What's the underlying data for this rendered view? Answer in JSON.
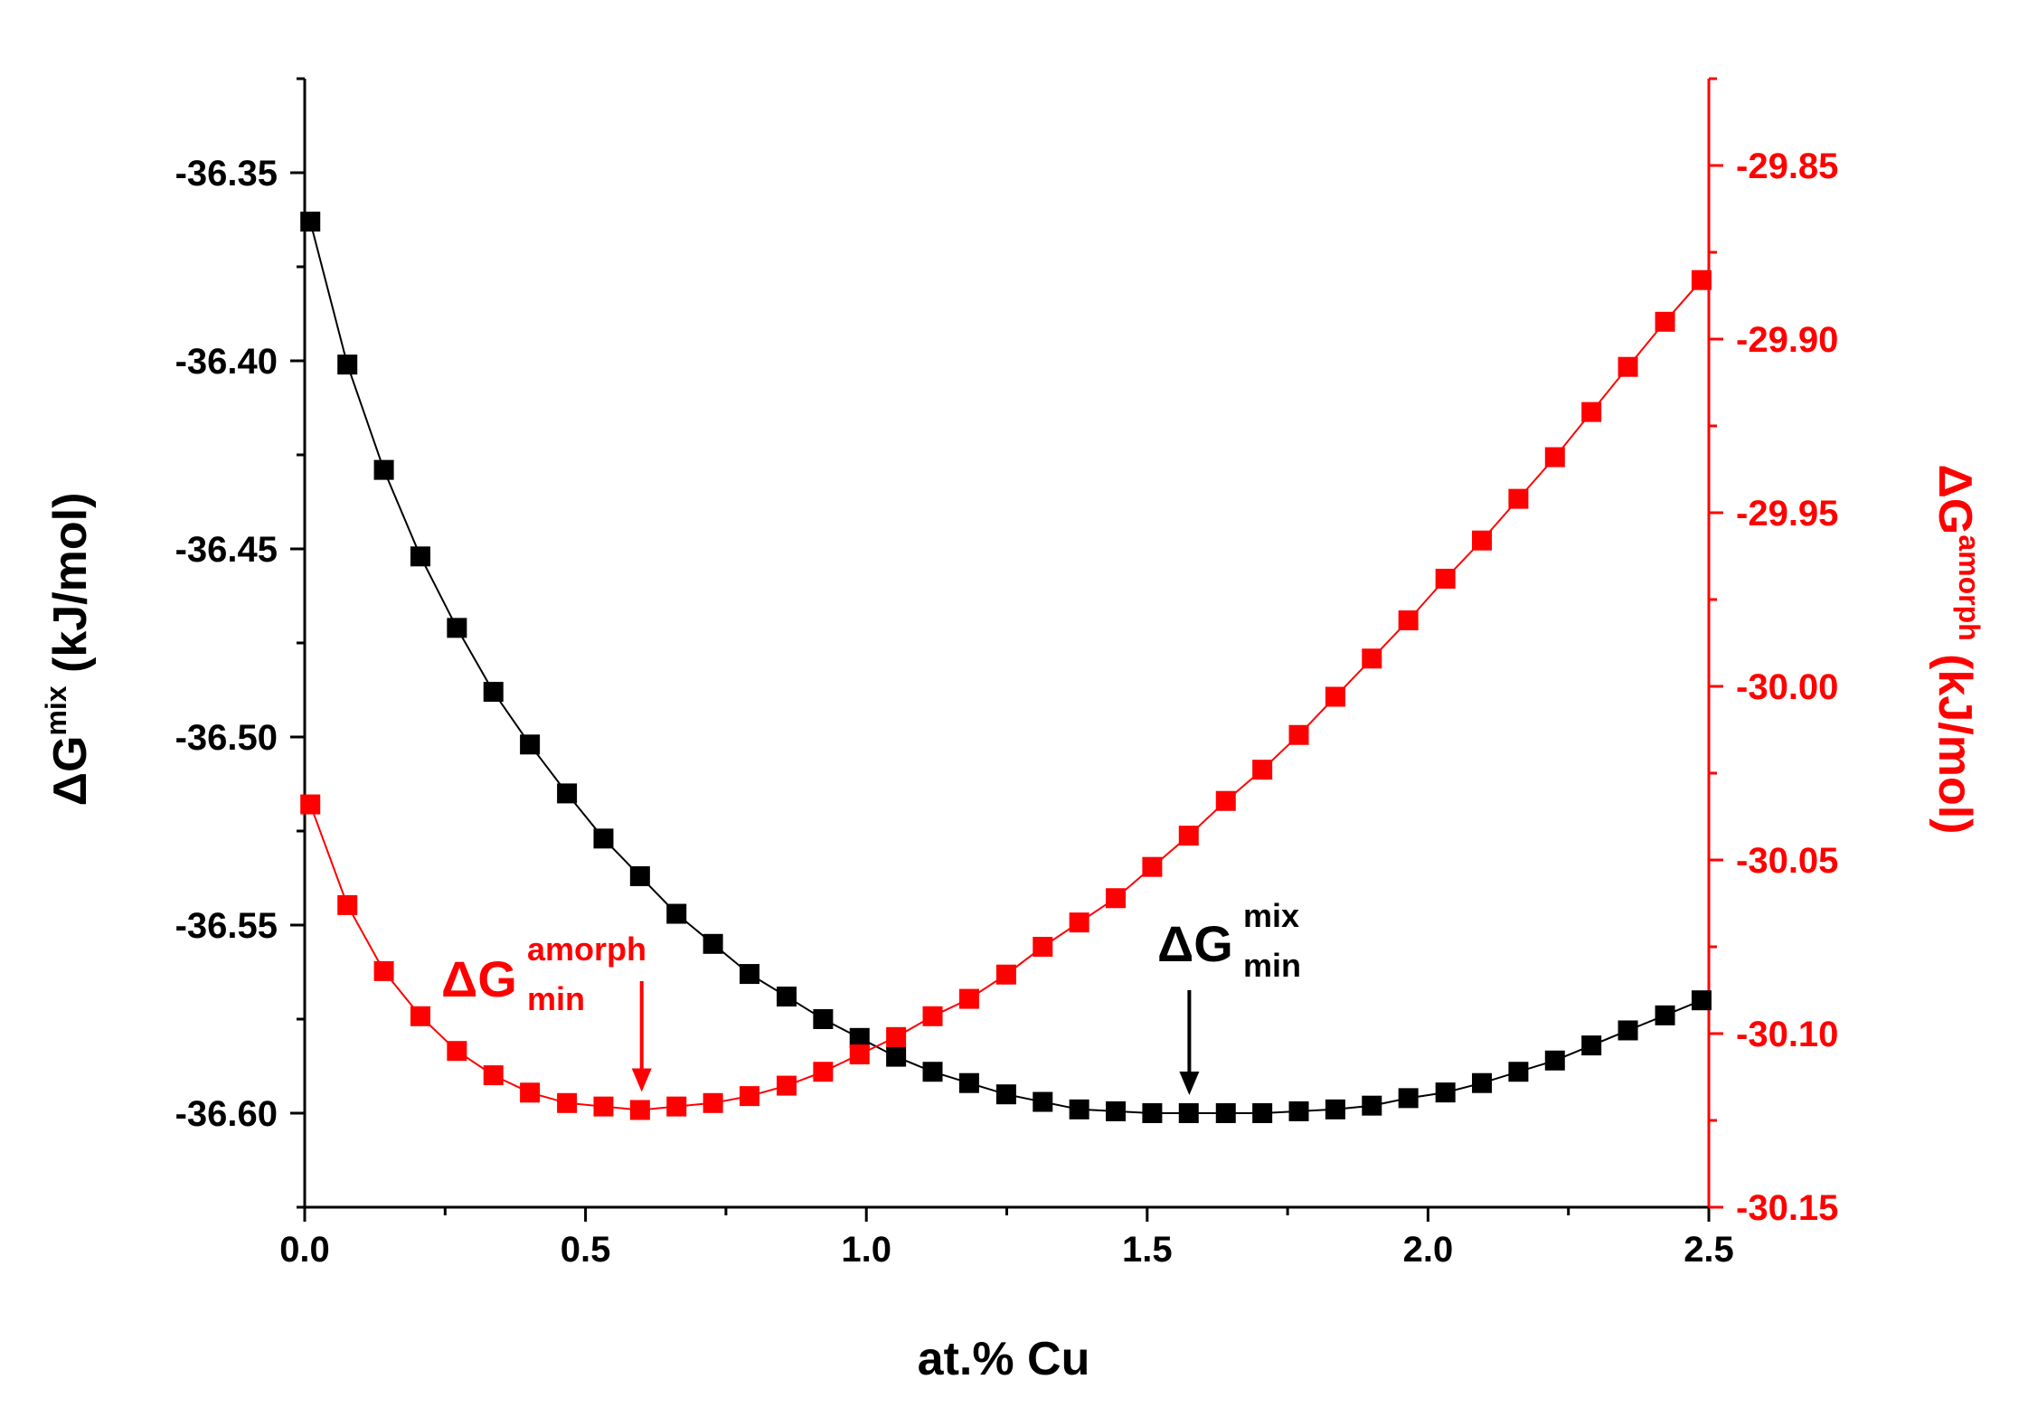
{
  "chart_data": {
    "type": "scatter",
    "title": "",
    "xlabel": "at.% Cu",
    "xlim": [
      0.0,
      2.5
    ],
    "xticks": [
      0.0,
      0.5,
      1.0,
      1.5,
      2.0,
      2.5
    ],
    "xtick_labels": [
      "0.0",
      "0.5",
      "1.0",
      "1.5",
      "2.0",
      "2.5"
    ],
    "left_axis": {
      "label_symbol": "ΔG",
      "label_sup": "mix",
      "label_unit": "(kJ/mol)",
      "color": "#000000",
      "ylim": [
        -36.625,
        -36.325
      ],
      "ticks": [
        -36.35,
        -36.4,
        -36.45,
        -36.5,
        -36.55,
        -36.6
      ],
      "tick_labels": [
        "-36.35",
        "-36.40",
        "-36.45",
        "-36.50",
        "-36.55",
        "-36.60"
      ]
    },
    "right_axis": {
      "label_symbol": "ΔG",
      "label_sup": "amorph",
      "label_unit": "(kJ/mol)",
      "color": "#ff0000",
      "ylim": [
        -30.15,
        -29.825
      ],
      "ticks": [
        -29.85,
        -29.9,
        -29.95,
        -30.0,
        -30.05,
        -30.1,
        -30.15
      ],
      "tick_labels": [
        "-29.85",
        "-29.90",
        "-29.95",
        "-30.00",
        "-30.05",
        "-30.10",
        "-30.15"
      ]
    },
    "x": [
      0.01,
      0.076,
      0.141,
      0.206,
      0.271,
      0.336,
      0.401,
      0.467,
      0.532,
      0.597,
      0.662,
      0.727,
      0.792,
      0.858,
      0.923,
      0.988,
      1.053,
      1.118,
      1.183,
      1.249,
      1.314,
      1.379,
      1.444,
      1.509,
      1.574,
      1.64,
      1.705,
      1.77,
      1.835,
      1.9,
      1.965,
      2.031,
      2.096,
      2.161,
      2.226,
      2.291,
      2.356,
      2.422,
      2.487
    ],
    "series": [
      {
        "name": "ΔG mix",
        "axis": "left",
        "color": "#000000",
        "values": [
          -36.363,
          -36.401,
          -36.429,
          -36.452,
          -36.471,
          -36.488,
          -36.502,
          -36.515,
          -36.527,
          -36.537,
          -36.547,
          -36.555,
          -36.563,
          -36.569,
          -36.575,
          -36.58,
          -36.585,
          -36.589,
          -36.592,
          -36.595,
          -36.597,
          -36.599,
          -36.5995,
          -36.6,
          -36.6,
          -36.6,
          -36.6,
          -36.5995,
          -36.599,
          -36.598,
          -36.596,
          -36.5945,
          -36.592,
          -36.589,
          -36.586,
          -36.582,
          -36.578,
          -36.574,
          -36.57
        ]
      },
      {
        "name": "ΔG amorph",
        "axis": "right",
        "color": "#ff0000",
        "values": [
          -30.034,
          -30.063,
          -30.082,
          -30.095,
          -30.105,
          -30.112,
          -30.117,
          -30.12,
          -30.121,
          -30.122,
          -30.121,
          -30.12,
          -30.118,
          -30.115,
          -30.111,
          -30.106,
          -30.101,
          -30.095,
          -30.09,
          -30.083,
          -30.075,
          -30.068,
          -30.061,
          -30.052,
          -30.043,
          -30.033,
          -30.024,
          -30.014,
          -30.003,
          -29.992,
          -29.981,
          -29.969,
          -29.958,
          -29.946,
          -29.934,
          -29.921,
          -29.908,
          -29.895,
          -29.883
        ]
      }
    ],
    "annotations": [
      {
        "name": "amorph-min",
        "symbol": "ΔG",
        "sup": "amorph",
        "sub": "min",
        "color": "#ff0000",
        "x": 0.6,
        "axis": "right",
        "y": -30.122
      },
      {
        "name": "mix-min",
        "symbol": "ΔG",
        "sup": "mix",
        "sub": "min",
        "color": "#000000",
        "x": 1.575,
        "axis": "left",
        "y": -36.6
      }
    ]
  }
}
